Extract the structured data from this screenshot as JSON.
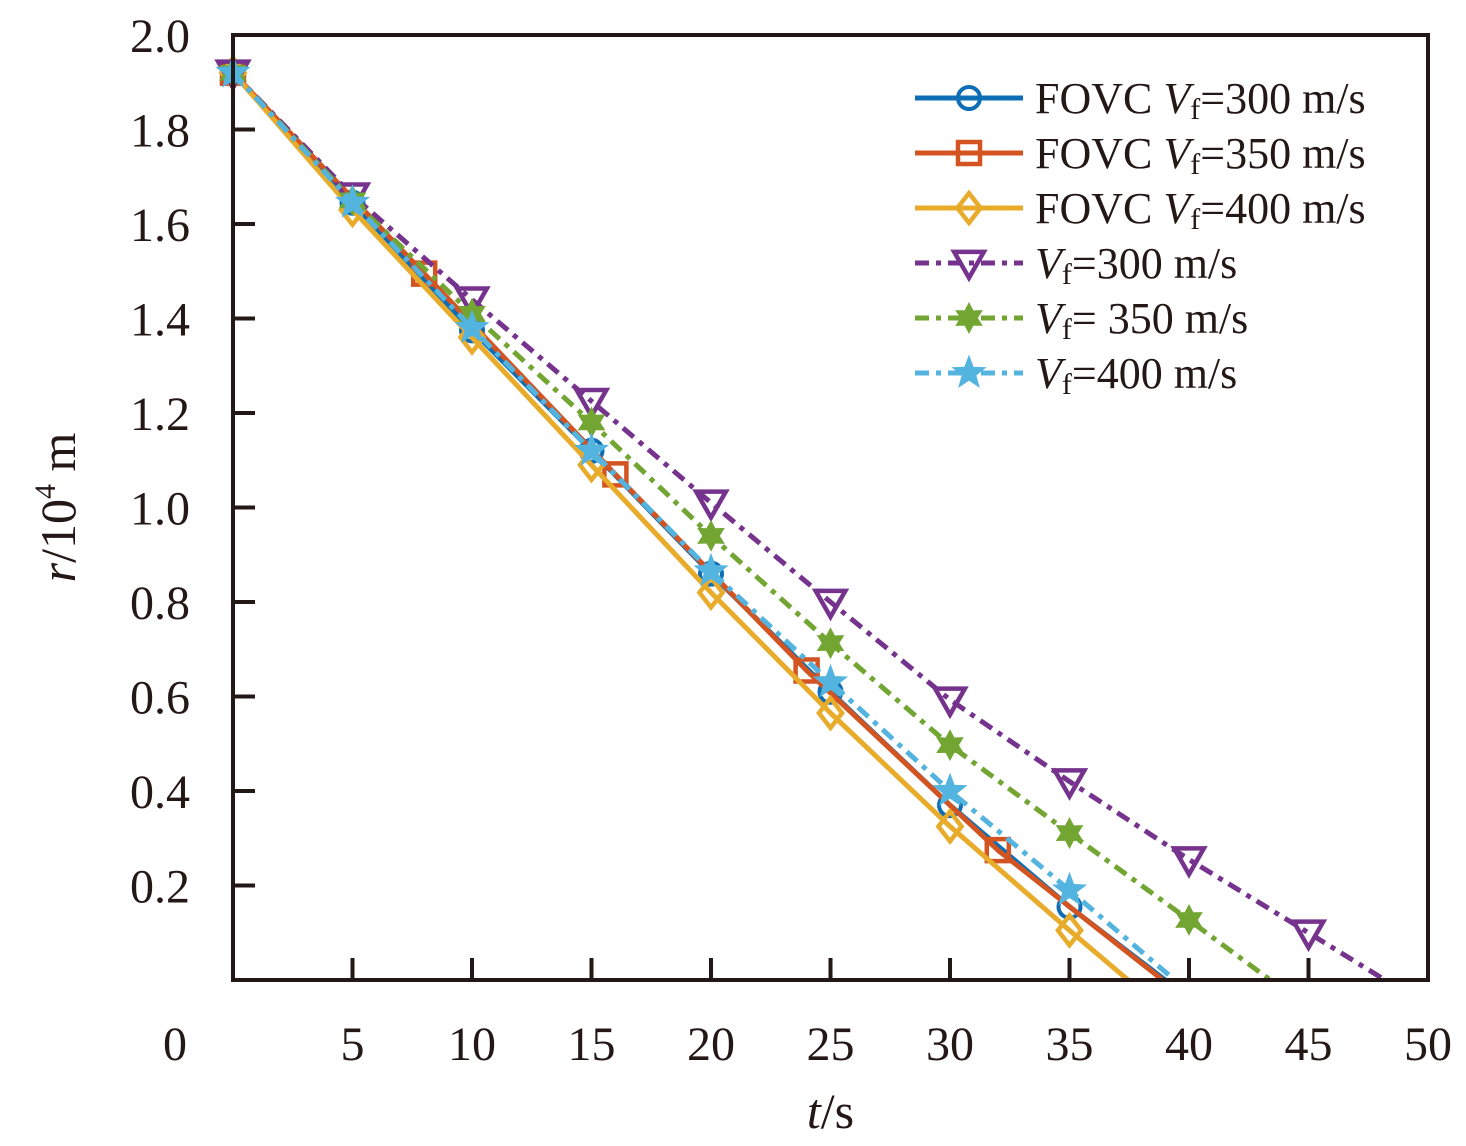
{
  "chart_data": {
    "type": "line",
    "title": "",
    "xlabel": {
      "var": "t",
      "unit": "/s"
    },
    "ylabel": {
      "var": "r",
      "unit_prefix": "/10",
      "unit_exp": "4",
      "unit_suffix": " m"
    },
    "xlim": [
      0,
      50
    ],
    "ylim": [
      0,
      2.0
    ],
    "xticks": [
      0,
      5,
      10,
      15,
      20,
      25,
      30,
      35,
      40,
      45,
      50
    ],
    "xtick_labels": [
      "0",
      "5",
      "10",
      "15",
      "20",
      "25",
      "30",
      "35",
      "40",
      "45",
      "50"
    ],
    "yticks": [
      0.2,
      0.4,
      0.6,
      0.8,
      1.0,
      1.2,
      1.4,
      1.6,
      1.8,
      2.0
    ],
    "ytick_labels": [
      "0.2",
      "0.4",
      "0.6",
      "0.8",
      "1.0",
      "1.2",
      "1.4",
      "1.6",
      "1.8",
      "2.0"
    ],
    "grid": false,
    "legend_position": "top-right",
    "series": [
      {
        "name": "FOVC Vf=300 m/s",
        "legend": {
          "prefix": "FOVC ",
          "var": "V",
          "sub": "f",
          "suffix": "=300 m/s"
        },
        "color": "#0E6EB5",
        "dash": "solid",
        "marker": "circle",
        "x": [
          0,
          5,
          10,
          15,
          20,
          25,
          30,
          35,
          39.0
        ],
        "y": [
          1.92,
          1.645,
          1.375,
          1.12,
          0.86,
          0.61,
          0.37,
          0.155,
          0
        ],
        "marker_indices": [
          0,
          1,
          2,
          3,
          4,
          5,
          6,
          7
        ]
      },
      {
        "name": "FOVC Vf=350 m/s",
        "legend": {
          "prefix": "FOVC ",
          "var": "V",
          "sub": "f",
          "suffix": "=350 m/s"
        },
        "color": "#D35420",
        "dash": "solid",
        "marker": "square",
        "x": [
          0,
          8,
          16,
          24,
          32,
          38.9
        ],
        "y": [
          1.92,
          1.495,
          1.07,
          0.655,
          0.275,
          0
        ],
        "marker_indices": [
          0,
          1,
          2,
          3,
          4
        ]
      },
      {
        "name": "FOVC Vf=400 m/s",
        "legend": {
          "prefix": "FOVC ",
          "var": "V",
          "sub": "f",
          "suffix": "=400 m/s"
        },
        "color": "#E8AB2A",
        "dash": "solid",
        "marker": "diamond",
        "x": [
          0,
          5,
          10,
          15,
          20,
          25,
          30,
          35,
          37.45
        ],
        "y": [
          1.92,
          1.63,
          1.36,
          1.09,
          0.82,
          0.565,
          0.325,
          0.105,
          0
        ],
        "marker_indices": [
          0,
          1,
          2,
          3,
          4,
          5,
          6,
          7
        ]
      },
      {
        "name": "Vf=300 m/s",
        "legend": {
          "prefix": "",
          "var": "V",
          "sub": "f",
          "suffix": "=300 m/s"
        },
        "color": "#76338D",
        "dash": "dashdot",
        "marker": "triangle-down",
        "x": [
          0,
          5,
          10,
          15,
          20,
          25,
          30,
          35,
          40,
          45,
          48.2
        ],
        "y": [
          1.92,
          1.66,
          1.44,
          1.225,
          1.01,
          0.8,
          0.593,
          0.42,
          0.255,
          0.1,
          0
        ],
        "marker_indices": [
          0,
          1,
          2,
          3,
          4,
          5,
          6,
          7,
          8,
          9
        ]
      },
      {
        "name": "Vf= 350 m/s",
        "legend": {
          "prefix": "",
          "var": "V",
          "sub": "f",
          "suffix": "= 350 m/s"
        },
        "color": "#73A533",
        "dash": "dashdot",
        "marker": "hexagram",
        "x": [
          0,
          5,
          10,
          15,
          20,
          25,
          30,
          35,
          40,
          43.4
        ],
        "y": [
          1.92,
          1.65,
          1.41,
          1.18,
          0.94,
          0.713,
          0.497,
          0.311,
          0.127,
          0
        ],
        "marker_indices": [
          0,
          1,
          2,
          3,
          4,
          5,
          6,
          7,
          8
        ]
      },
      {
        "name": "Vf=400 m/s",
        "legend": {
          "prefix": "",
          "var": "V",
          "sub": "f",
          "suffix": "=400 m/s"
        },
        "color": "#54B4E0",
        "dash": "dashdot",
        "marker": "pentagram",
        "x": [
          0,
          5,
          10,
          15,
          20,
          25,
          30,
          35,
          39.4
        ],
        "y": [
          1.92,
          1.645,
          1.38,
          1.12,
          0.865,
          0.63,
          0.4,
          0.19,
          0
        ],
        "marker_indices": [
          0,
          1,
          2,
          3,
          4,
          5,
          6,
          7
        ]
      }
    ]
  }
}
